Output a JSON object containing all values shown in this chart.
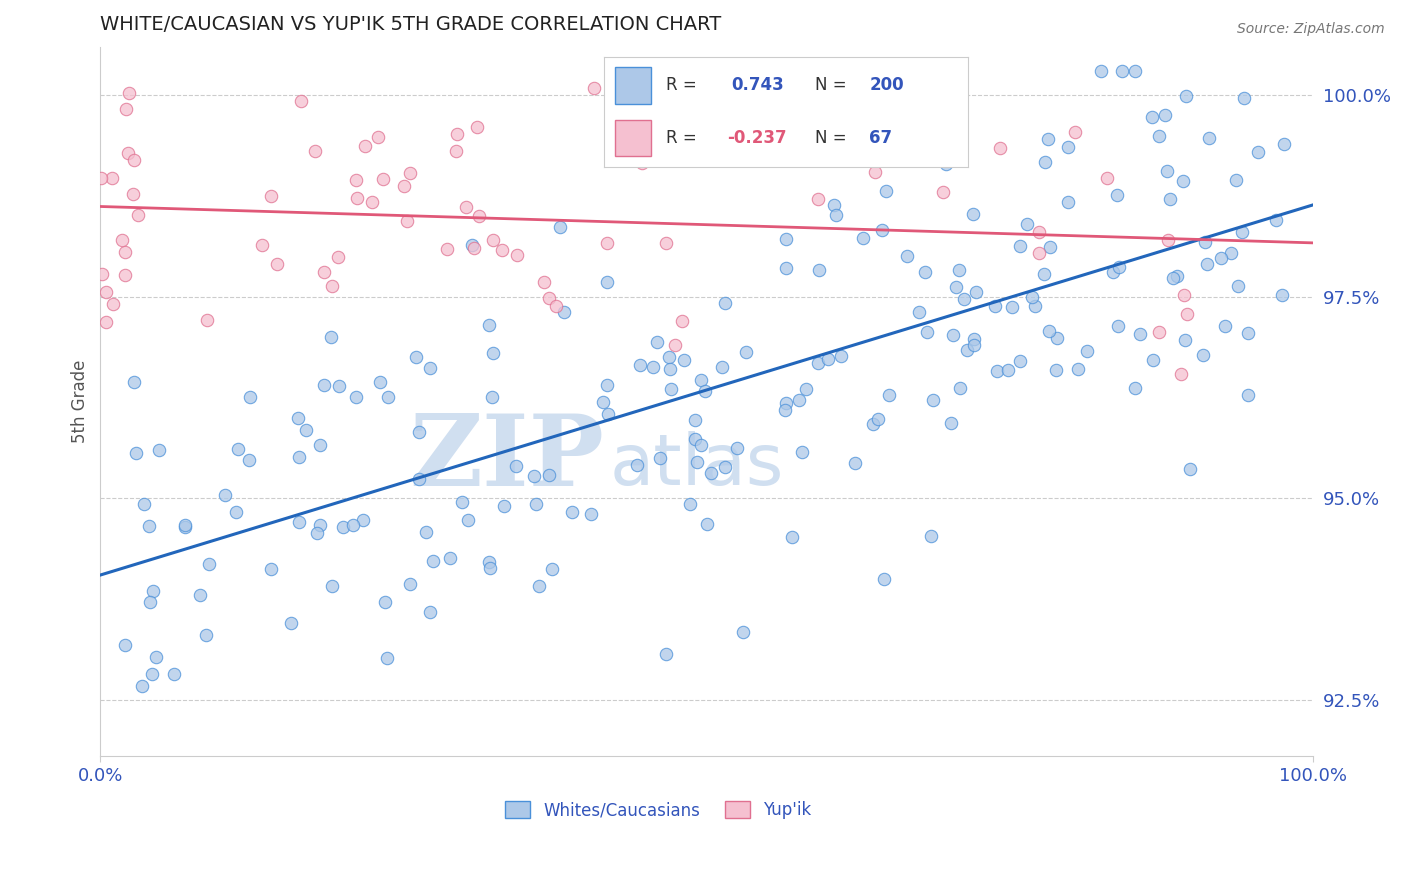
{
  "title": "WHITE/CAUCASIAN VS YUP'IK 5TH GRADE CORRELATION CHART",
  "source": "Source: ZipAtlas.com",
  "ylabel": "5th Grade",
  "yticks": [
    92.5,
    95.0,
    97.5,
    100.0
  ],
  "ytick_labels": [
    "92.5%",
    "95.0%",
    "97.5%",
    "100.0%"
  ],
  "xmin": 0.0,
  "xmax": 100.0,
  "ymin": 91.8,
  "ymax": 100.6,
  "blue_R": 0.743,
  "blue_N": 200,
  "pink_R": -0.237,
  "pink_N": 67,
  "blue_color": "#adc8e8",
  "blue_edge_color": "#4a90d9",
  "blue_line_color": "#2266bb",
  "pink_color": "#f5c0d0",
  "pink_edge_color": "#e07090",
  "pink_line_color": "#e05878",
  "legend_blue_label": "Whites/Caucasians",
  "legend_pink_label": "Yup'ik",
  "title_color": "#333333",
  "tick_color": "#3355bb",
  "grid_color": "#cccccc",
  "watermark_zip": "ZIP",
  "watermark_atlas": "atlas",
  "watermark_color": "#d0dff0",
  "background_color": "#ffffff",
  "seed": 12345
}
